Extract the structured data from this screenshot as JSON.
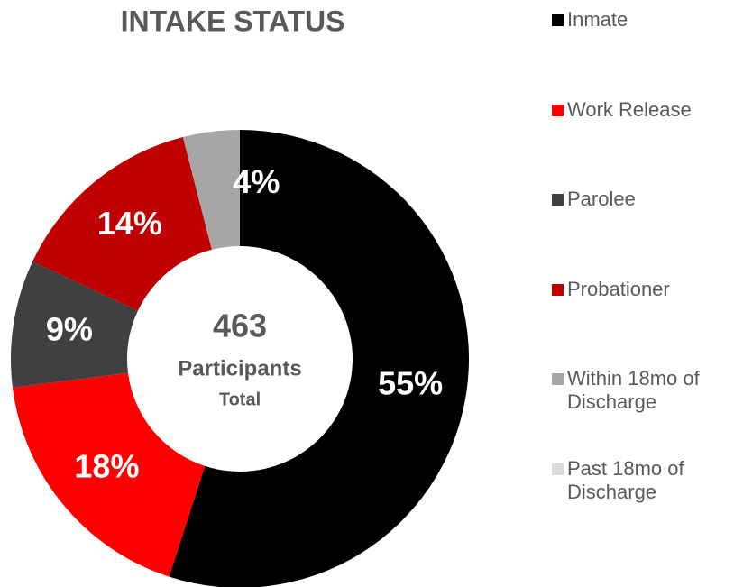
{
  "chart_data": {
    "type": "donut",
    "title": "INTAKE STATUS",
    "categories": [
      "Inmate",
      "Work Release",
      "Parolee",
      "Probationer",
      "Within 18mo of Discharge",
      "Past 18mo of Discharge"
    ],
    "values": [
      55,
      18,
      9,
      14,
      4,
      0
    ],
    "value_labels": [
      "55%",
      "18%",
      "9%",
      "14%",
      "4%",
      null
    ],
    "colors": [
      "#000000",
      "#ff0000",
      "#404040",
      "#c00000",
      "#a6a6a6",
      "#d9d9d9"
    ],
    "center_text": [
      "463",
      "Participants",
      "Total"
    ],
    "legend": "right"
  }
}
